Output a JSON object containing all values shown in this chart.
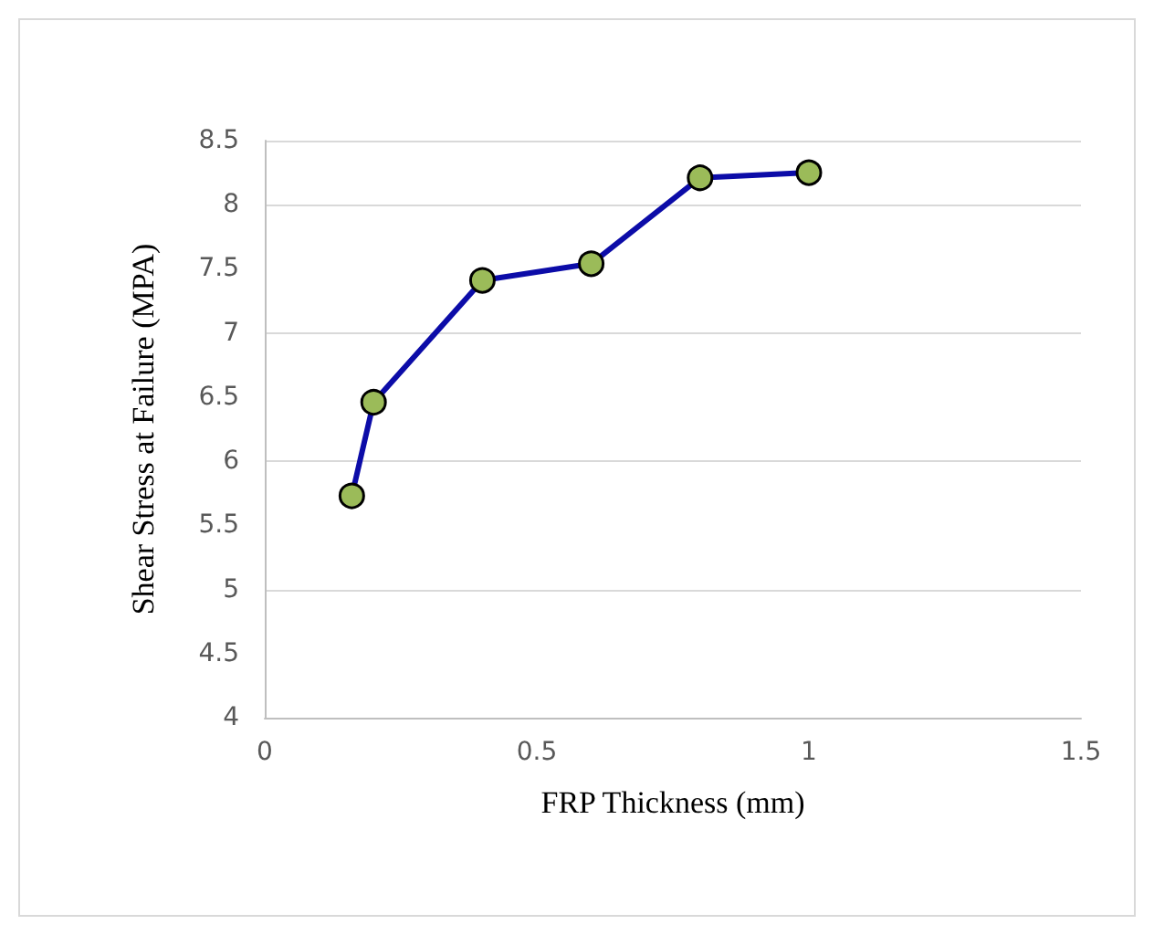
{
  "chart_data": {
    "type": "line",
    "xlabel": "FRP Thickness (mm)",
    "ylabel": "Shear Stress at Failure (MPA)",
    "x": [
      0.16,
      0.2,
      0.4,
      0.6,
      0.8,
      1
    ],
    "series": [
      {
        "color": "#0c0ca8",
        "values": [
          5.73,
          6.46,
          7.41,
          7.54,
          8.21,
          8.25
        ]
      }
    ],
    "xlim": [
      0,
      1.5
    ],
    "xticks": [
      0,
      0.5,
      1,
      1.5
    ],
    "ylim": [
      4,
      8.5
    ],
    "yticks": [
      4,
      4.5,
      5,
      5.5,
      6,
      6.5,
      7,
      7.5,
      8,
      8.5
    ],
    "grid": "y",
    "marker": "circle",
    "line_style": "solid"
  }
}
